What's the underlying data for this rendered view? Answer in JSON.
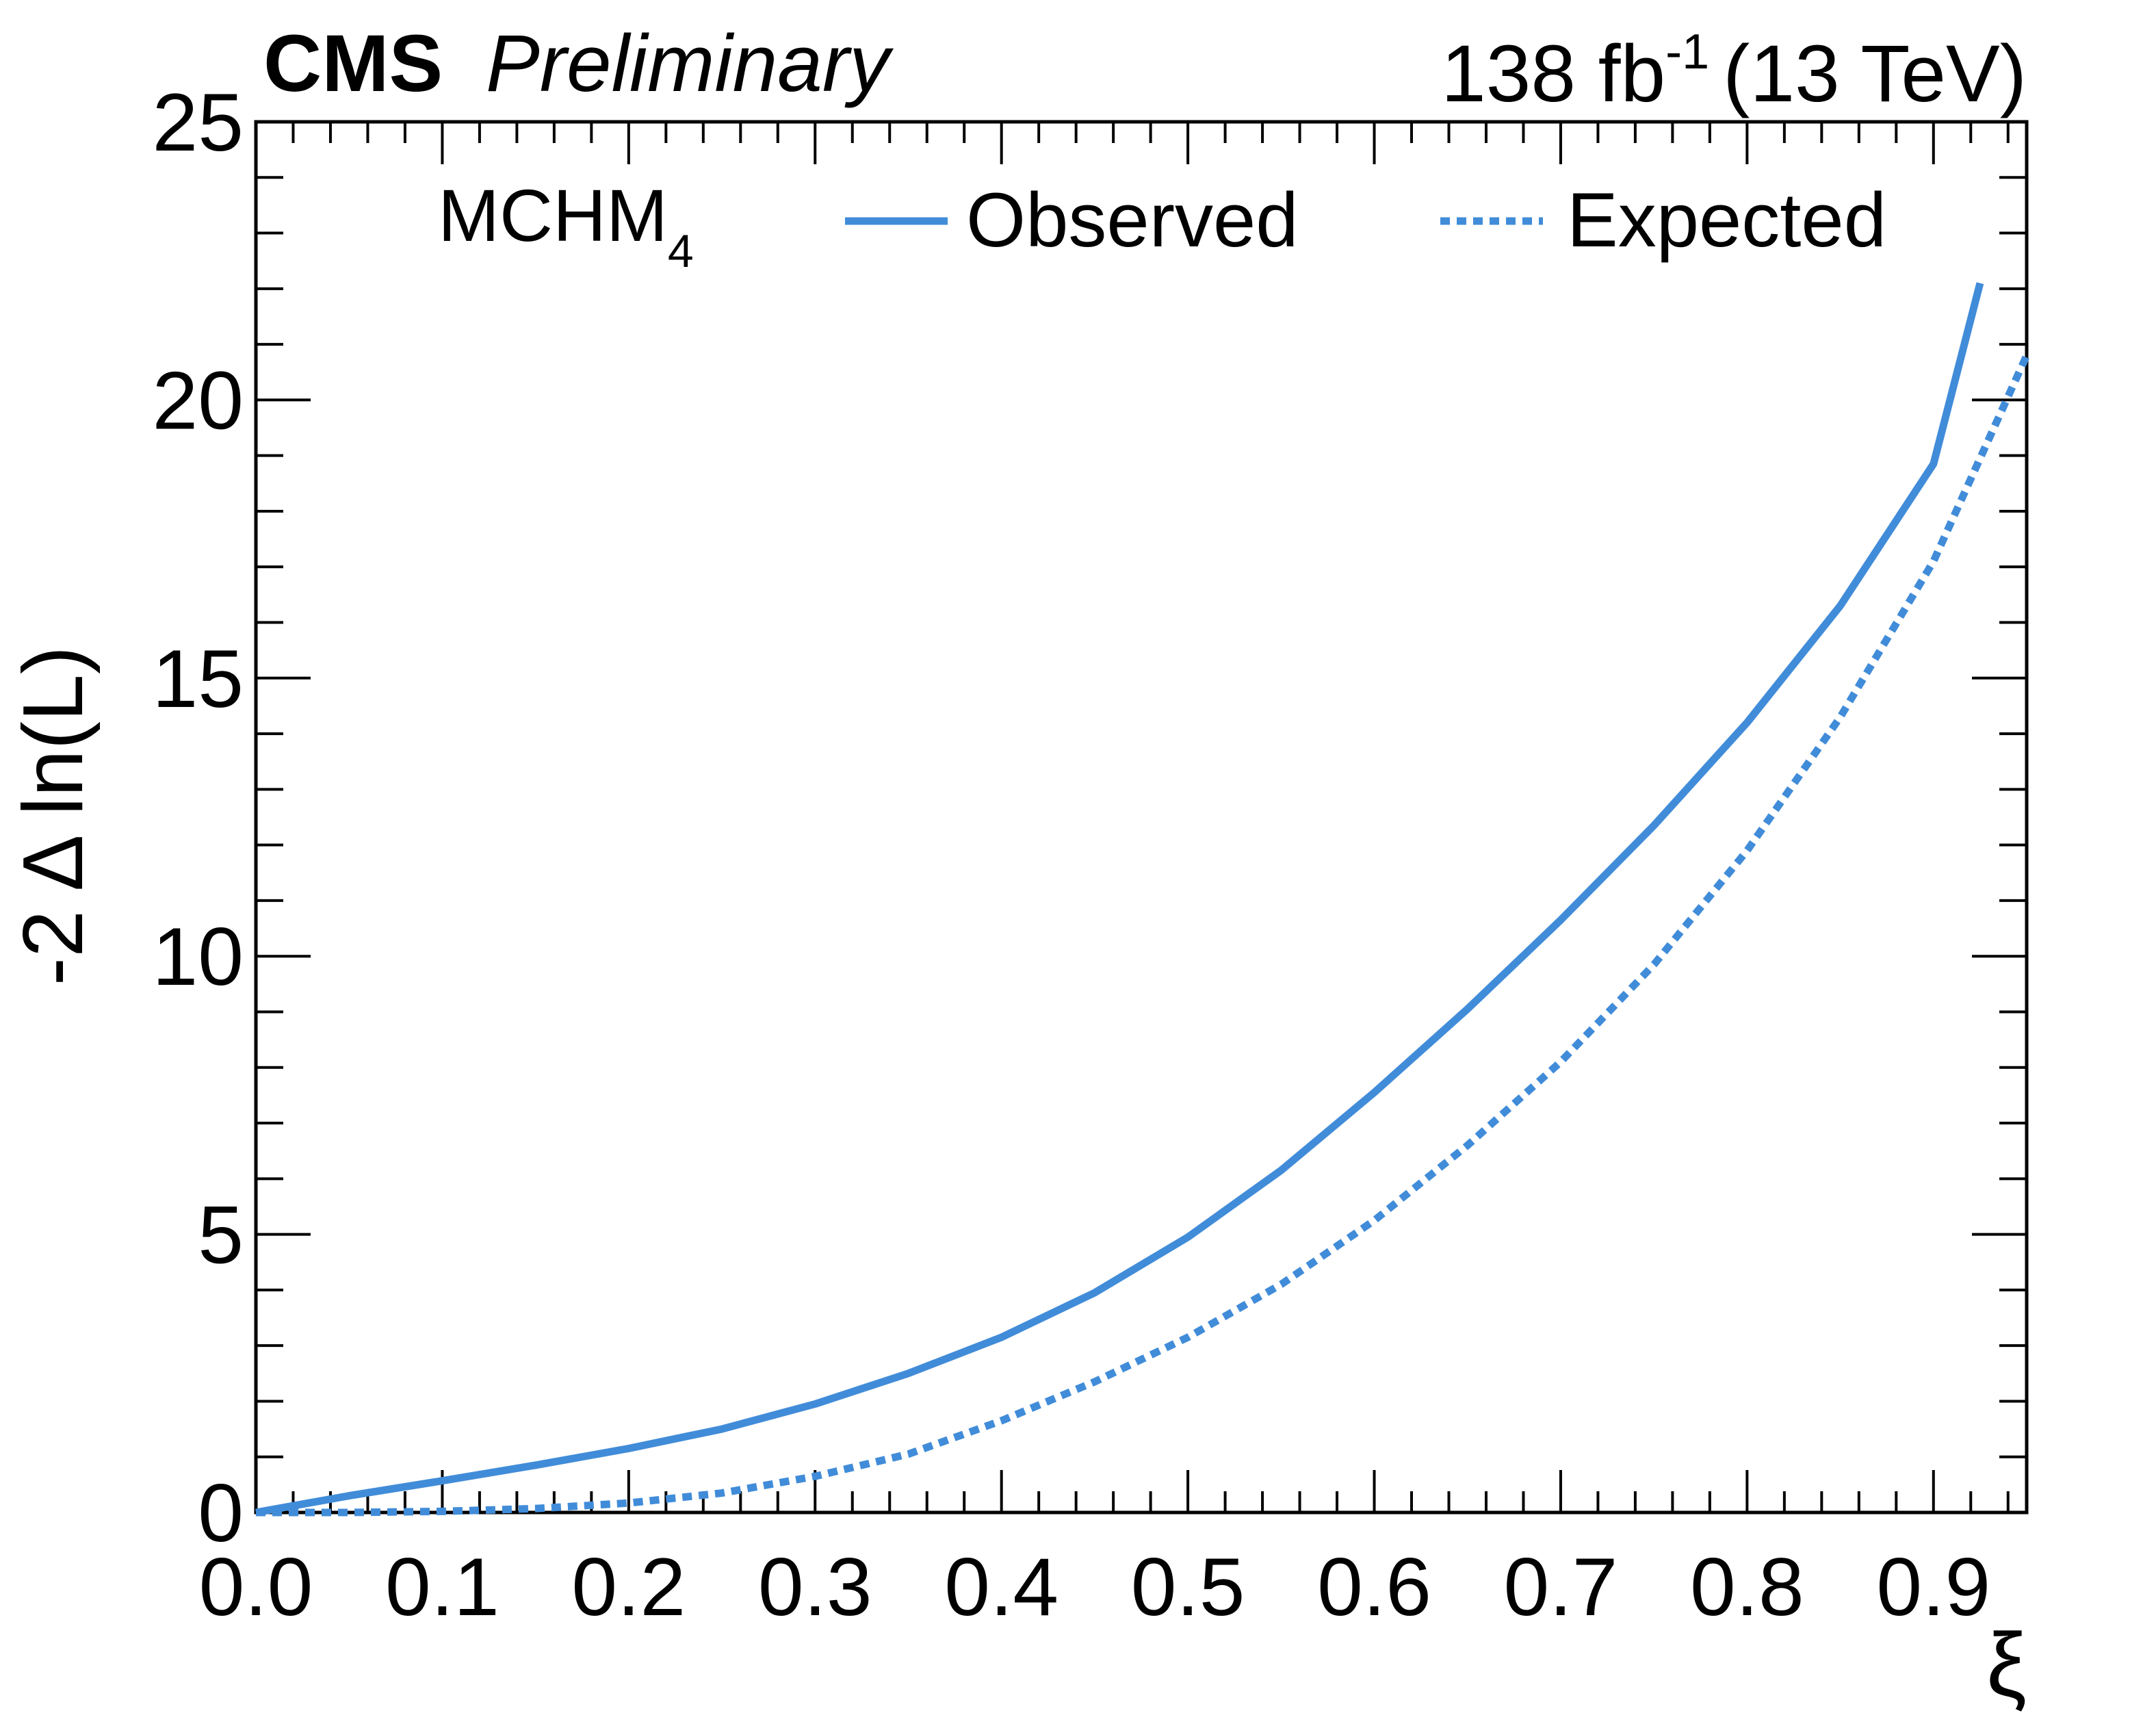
{
  "chart_data": {
    "type": "line",
    "experiment": "CMS",
    "status": "Preliminary",
    "luminosity": "138 fb",
    "luminosity_exponent": "-1",
    "energy": "(13 TeV)",
    "model_label": "MCHM",
    "model_subscript": "4",
    "xlabel": "ξ",
    "ylabel": "-2 Δ ln(L)",
    "xlim": [
      0.0,
      0.95
    ],
    "ylim": [
      0,
      25
    ],
    "x_ticks": [
      "0.0",
      "0.1",
      "0.2",
      "0.3",
      "0.4",
      "0.5",
      "0.6",
      "0.7",
      "0.8",
      "0.9"
    ],
    "y_ticks": [
      "0",
      "5",
      "10",
      "15",
      "20",
      "25"
    ],
    "color": "#418cd9",
    "legend_position": "top",
    "series": [
      {
        "name": "Observed",
        "style": "solid",
        "x": [
          0.0,
          0.05,
          0.1,
          0.15,
          0.2,
          0.25,
          0.3,
          0.35,
          0.4,
          0.45,
          0.5,
          0.55,
          0.6,
          0.65,
          0.7,
          0.75,
          0.8,
          0.85,
          0.9,
          0.925
        ],
        "y": [
          0.0,
          0.3,
          0.57,
          0.85,
          1.15,
          1.5,
          1.95,
          2.5,
          3.15,
          3.95,
          4.95,
          6.15,
          7.55,
          9.05,
          10.65,
          12.35,
          14.2,
          16.3,
          18.85,
          22.1
        ]
      },
      {
        "name": "Expected",
        "style": "dotted",
        "x": [
          0.0,
          0.05,
          0.1,
          0.15,
          0.2,
          0.25,
          0.3,
          0.35,
          0.4,
          0.45,
          0.5,
          0.55,
          0.6,
          0.65,
          0.7,
          0.75,
          0.8,
          0.85,
          0.9,
          0.95
        ],
        "y": [
          0.0,
          0.0,
          0.02,
          0.07,
          0.17,
          0.35,
          0.65,
          1.05,
          1.65,
          2.35,
          3.15,
          4.1,
          5.25,
          6.6,
          8.1,
          9.85,
          11.9,
          14.3,
          17.1,
          20.8
        ]
      }
    ]
  }
}
